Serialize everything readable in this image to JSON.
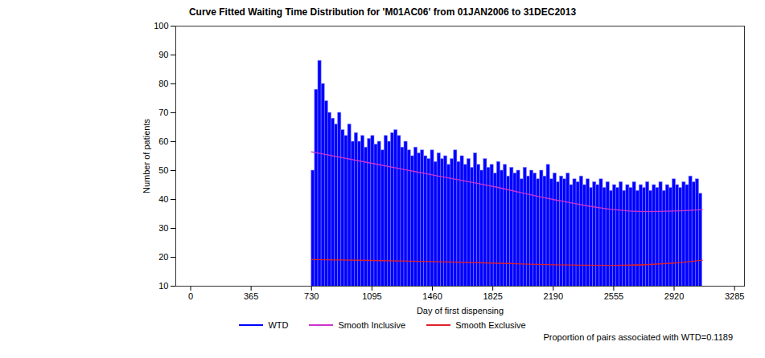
{
  "chart_data": {
    "type": "bar",
    "title": "Curve Fitted Waiting Time Distribution for 'M01AC06' from 01JAN2006 to 31DEC2013",
    "xlabel": "Day of first dispensing",
    "ylabel": "Number of patients",
    "annotation": "Proportion of pairs associated with WTD=0.1189",
    "xlim": [
      -90,
      3345
    ],
    "xticks": [
      0,
      365,
      730,
      1095,
      1460,
      1825,
      2190,
      2555,
      2920,
      3285
    ],
    "ylim": [
      10,
      100
    ],
    "yticks": [
      10,
      20,
      30,
      40,
      50,
      60,
      70,
      80,
      90,
      100
    ],
    "grid": false,
    "legend": "bottom",
    "series": [
      {
        "name": "WTD",
        "type": "bar",
        "color": "#0000ff",
        "bins": [
          730,
          750,
          770,
          790,
          810,
          830,
          850,
          870,
          890,
          910,
          930,
          950,
          970,
          990,
          1010,
          1030,
          1050,
          1070,
          1090,
          1110,
          1130,
          1150,
          1170,
          1190,
          1210,
          1230,
          1250,
          1270,
          1290,
          1310,
          1330,
          1350,
          1370,
          1390,
          1410,
          1430,
          1450,
          1470,
          1490,
          1510,
          1530,
          1550,
          1570,
          1590,
          1610,
          1630,
          1650,
          1670,
          1690,
          1710,
          1730,
          1750,
          1770,
          1790,
          1810,
          1830,
          1850,
          1870,
          1890,
          1910,
          1930,
          1950,
          1970,
          1990,
          2010,
          2030,
          2050,
          2070,
          2090,
          2110,
          2130,
          2150,
          2170,
          2190,
          2210,
          2230,
          2250,
          2270,
          2290,
          2310,
          2330,
          2350,
          2370,
          2390,
          2410,
          2430,
          2450,
          2470,
          2490,
          2510,
          2530,
          2550,
          2570,
          2590,
          2610,
          2630,
          2650,
          2670,
          2690,
          2710,
          2730,
          2750,
          2770,
          2790,
          2810,
          2830,
          2850,
          2870,
          2890,
          2910,
          2930,
          2950,
          2970,
          2990,
          3010,
          3030,
          3050,
          3070,
          3090
        ],
        "values": [
          50,
          78,
          88,
          80,
          74,
          70,
          68,
          66,
          70,
          64,
          62,
          66,
          60,
          63,
          60,
          62,
          58,
          61,
          62,
          59,
          60,
          57,
          62,
          60,
          63,
          64,
          62,
          58,
          60,
          57,
          55,
          58,
          56,
          57,
          55,
          54,
          57,
          53,
          56,
          54,
          55,
          52,
          54,
          57,
          53,
          55,
          52,
          54,
          51,
          56,
          52,
          50,
          54,
          51,
          52,
          49,
          53,
          50,
          52,
          48,
          51,
          49,
          50,
          47,
          51,
          48,
          50,
          49,
          47,
          50,
          48,
          52,
          47,
          49,
          46,
          48,
          47,
          49,
          45,
          47,
          46,
          48,
          45,
          47,
          44,
          46,
          45,
          47,
          44,
          46,
          43,
          45,
          44,
          46,
          43,
          45,
          44,
          46,
          43,
          45,
          44,
          46,
          43,
          45,
          44,
          46,
          43,
          45,
          44,
          47,
          45,
          44,
          46,
          45,
          48,
          46,
          47,
          42
        ]
      },
      {
        "name": "Smooth Inclusive",
        "type": "line",
        "color": "#cc33cc",
        "x": [
          730,
          1095,
          1460,
          1825,
          2190,
          2555,
          2737,
          2920,
          3090
        ],
        "values": [
          56.5,
          52.5,
          48.5,
          44.5,
          40,
          36.5,
          35.8,
          36,
          36.5
        ]
      },
      {
        "name": "Smooth Exclusive",
        "type": "line",
        "color": "#e0202a",
        "x": [
          730,
          1095,
          1460,
          1825,
          2190,
          2555,
          2920,
          3090
        ],
        "values": [
          19.2,
          18.9,
          18.5,
          18,
          17.4,
          17.2,
          18,
          19
        ]
      }
    ]
  }
}
